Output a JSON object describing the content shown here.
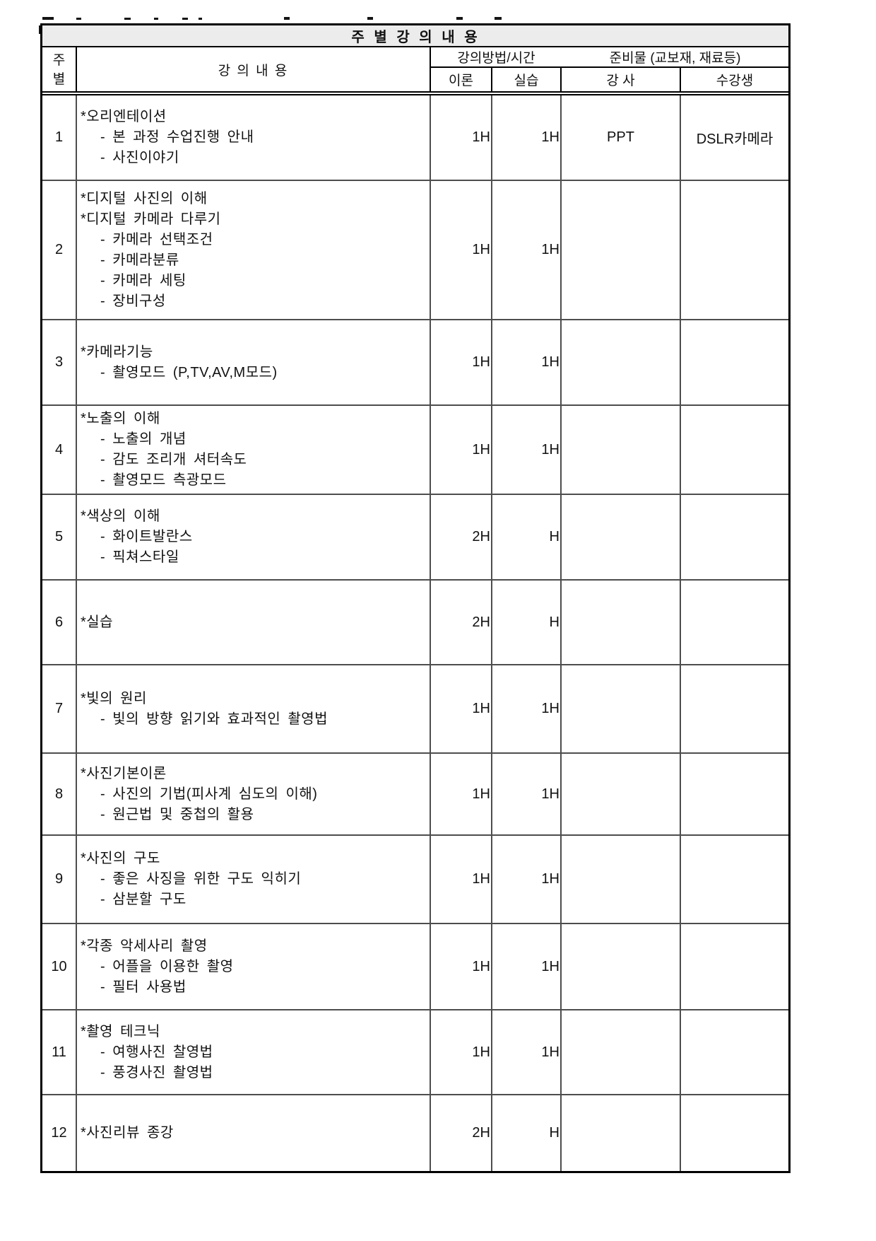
{
  "page": {
    "title": "주 별 강 의 내 용"
  },
  "table": {
    "header": {
      "week_line1": "주",
      "week_line2": "별",
      "content_col": "강 의 내 용",
      "method_group": "강의방법/시간",
      "theory_col": "이론",
      "practice_col": "실습",
      "materials_group": "준비물 (교보재, 재료등)",
      "instructor_col": "강 사",
      "student_col": "수강생"
    },
    "rows": [
      {
        "week": "1",
        "lines": [
          "*오리엔테이션",
          "- 본 과정 수업진행 안내",
          "- 사진이야기"
        ],
        "theory": "1H",
        "practice": "1H",
        "instructor": "PPT",
        "student": "DSLR카메라"
      },
      {
        "week": "2",
        "lines": [
          "*디지털 사진의 이해",
          "*디지털 카메라 다루기",
          "- 카메라 선택조건",
          "- 카메라분류",
          "- 카메라 세팅",
          "- 장비구성"
        ],
        "theory": "1H",
        "practice": "1H",
        "instructor": "",
        "student": ""
      },
      {
        "week": "3",
        "lines": [
          "*카메라기능",
          "- 촬영모드 (P,TV,AV,M모드)"
        ],
        "theory": "1H",
        "practice": "1H",
        "instructor": "",
        "student": ""
      },
      {
        "week": "4",
        "lines": [
          "*노출의 이해",
          "- 노출의 개념",
          "- 감도 조리개 셔터속도",
          "- 촬영모드 측광모드"
        ],
        "theory": "1H",
        "practice": "1H",
        "instructor": "",
        "student": ""
      },
      {
        "week": "5",
        "lines": [
          "*색상의 이해",
          "- 화이트발란스",
          "- 픽쳐스타일"
        ],
        "theory": "2H",
        "practice": "H",
        "instructor": "",
        "student": ""
      },
      {
        "week": "6",
        "lines": [
          "*실습"
        ],
        "theory": "2H",
        "practice": "H",
        "instructor": "",
        "student": ""
      },
      {
        "week": "7",
        "lines": [
          "*빛의 원리",
          "- 빛의 방향 읽기와 효과적인 촬영법"
        ],
        "theory": "1H",
        "practice": "1H",
        "instructor": "",
        "student": ""
      },
      {
        "week": "8",
        "lines": [
          "*사진기본이론",
          "- 사진의 기법(피사계 심도의 이해)",
          "- 원근법 및 중첩의 활용"
        ],
        "theory": "1H",
        "practice": "1H",
        "instructor": "",
        "student": ""
      },
      {
        "week": "9",
        "lines": [
          "*사진의 구도",
          "- 좋은 사징을 위한 구도 익히기",
          "- 삼분할 구도"
        ],
        "theory": "1H",
        "practice": "1H",
        "instructor": "",
        "student": ""
      },
      {
        "week": "10",
        "lines": [
          "*각종 악세사리 촬영",
          "- 어플을 이용한 촬영",
          "- 필터 사용법"
        ],
        "theory": "1H",
        "practice": "1H",
        "instructor": "",
        "student": ""
      },
      {
        "week": "11",
        "lines": [
          "*촬영 테크닉",
          "- 여행사진 찰영법",
          "- 풍경사진 촬영법"
        ],
        "theory": "1H",
        "practice": "1H",
        "instructor": "",
        "student": ""
      },
      {
        "week": "12",
        "lines": [
          "*사진리뷰 종강"
        ],
        "theory": "2H",
        "practice": "H",
        "instructor": "",
        "student": ""
      }
    ]
  }
}
